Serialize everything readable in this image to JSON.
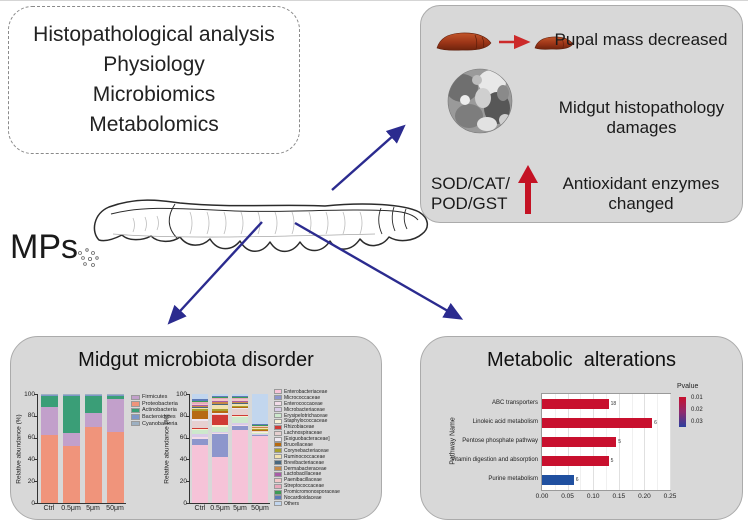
{
  "methods_box": {
    "lines": [
      "Histopathological analysis",
      "Physiology",
      "Microbiomics",
      "Metabolomics"
    ]
  },
  "mps_label": "MPs",
  "phenotype_box": {
    "pupal_text": "Pupal mass decreased",
    "histo_text": "Midgut histopathology\ndamages",
    "enzymes_label": "SOD/CAT/\nPOD/GST",
    "enzymes_text": "Antioxidant enzymes\nchanged"
  },
  "microbiota_box": {
    "title": "Midgut microbiota disorder"
  },
  "metabolic_box": {
    "title": "Metabolic  alterations"
  },
  "colors": {
    "arrow_navy": "#2b2b8f",
    "arrow_red": "#cc2a2a",
    "enzyme_arrow_red": "#c41224",
    "box_gray": "#d8d8d8",
    "bar_red": "#c8102e",
    "bar_blue": "#2050a0"
  },
  "chart_data": [
    {
      "id": "phylum",
      "type": "bar",
      "stacked": true,
      "ylabel": "Relative abundance (%)",
      "ylim": [
        0,
        100
      ],
      "yticks": [
        0,
        20,
        40,
        60,
        80,
        100
      ],
      "categories": [
        "Ctrl",
        "0.5μm",
        "5μm",
        "50μm"
      ],
      "legend_position": "right",
      "stack_order": [
        1,
        0,
        2,
        3,
        4
      ],
      "series": [
        {
          "name": "Firmicutes",
          "color": "#c2a0cb",
          "values": [
            26,
            12,
            13,
            30
          ]
        },
        {
          "name": "Proteobacteria",
          "color": "#f0947b",
          "values": [
            62,
            52,
            70,
            65
          ]
        },
        {
          "name": "Actinobacteria",
          "color": "#3a9e77",
          "values": [
            10,
            35,
            15,
            4
          ]
        },
        {
          "name": "Bacteroidetes",
          "color": "#7e97c8",
          "values": [
            1,
            0.5,
            1,
            0.5
          ]
        },
        {
          "name": "Cyanobacteria",
          "color": "#9db0c2",
          "values": [
            1,
            0.5,
            1,
            0.5
          ]
        }
      ]
    },
    {
      "id": "family",
      "type": "bar",
      "stacked": true,
      "ylabel": "Relative abundance (%)",
      "ylim": [
        0,
        100
      ],
      "yticks": [
        0,
        20,
        40,
        60,
        80,
        100
      ],
      "categories": [
        "Ctrl",
        "0.5μm",
        "5μm",
        "50μm"
      ],
      "legend_position": "right",
      "series": [
        {
          "name": "Enterobacteriaceae",
          "color": "#f6c3d8",
          "values": [
            53,
            42,
            67,
            62
          ]
        },
        {
          "name": "Micrococcaceae",
          "color": "#8d96cc",
          "values": [
            6,
            21,
            4,
            0.5
          ]
        },
        {
          "name": "Enterococcaceae",
          "color": "#f2dce8",
          "values": [
            2,
            1,
            1,
            0.5
          ]
        },
        {
          "name": "Microbacteriaceae",
          "color": "#d9cbe8",
          "values": [
            2,
            1,
            1,
            0.5
          ]
        },
        {
          "name": "Erysipelotrichaceae",
          "color": "#cde8cc",
          "values": [
            4,
            5,
            6,
            1.5
          ]
        },
        {
          "name": "Staphylococcaceae",
          "color": "#f8f1d4",
          "values": [
            1,
            2,
            1,
            0.5
          ]
        },
        {
          "name": "Rhizobiaceae",
          "color": "#d03a34",
          "values": [
            0.5,
            9,
            0.5,
            0.3
          ]
        },
        {
          "name": "Lachnospiraceae",
          "color": "#e6d0d0",
          "values": [
            7,
            1,
            6,
            0.7
          ]
        },
        {
          "name": "[Exiguobacteraceae]",
          "color": "#eee8f0",
          "values": [
            1.5,
            0.5,
            0.5,
            0.3
          ]
        },
        {
          "name": "Brucellaceae",
          "color": "#b66a10",
          "values": [
            7,
            1.5,
            1,
            0.2
          ]
        },
        {
          "name": "Corynebacteriaceae",
          "color": "#a8a02e",
          "values": [
            2,
            2,
            1,
            0.5
          ]
        },
        {
          "name": "Ruminococcaceae",
          "color": "#f2e2b0",
          "values": [
            1,
            4,
            2,
            1.5
          ]
        },
        {
          "name": "Brevibacteriaceae",
          "color": "#49687f",
          "values": [
            1,
            1,
            1,
            0.5
          ]
        },
        {
          "name": "Dermabacteraceae",
          "color": "#c78947",
          "values": [
            1,
            2,
            1,
            0.5
          ]
        },
        {
          "name": "Lactobacillaceae",
          "color": "#a85da8",
          "values": [
            1,
            1,
            1,
            0.5
          ]
        },
        {
          "name": "Paenibacillaceae",
          "color": "#f2c7c7",
          "values": [
            1,
            1,
            1,
            0.5
          ]
        },
        {
          "name": "Streptococcaceae",
          "color": "#e8a8ba",
          "values": [
            2,
            1,
            1,
            0.5
          ]
        },
        {
          "name": "Promicromonosporaceae",
          "color": "#3d9a55",
          "values": [
            1,
            1,
            1,
            0.5
          ]
        },
        {
          "name": "Nocardioidaceae",
          "color": "#5c7ab8",
          "values": [
            1,
            1,
            1,
            0.5
          ]
        },
        {
          "name": "Others",
          "color": "#c2d6ee",
          "values": [
            5,
            2,
            2,
            27.5
          ]
        }
      ]
    },
    {
      "id": "pathways",
      "type": "bar_h",
      "ylabel": "Pathway Name",
      "categories": [
        "ABC transporters",
        "Linoleic acid metabolism",
        "Pentose phosphate pathway",
        "Vitamin digestion and absorption",
        "Purine metabolism"
      ],
      "values": [
        0.13,
        0.215,
        0.145,
        0.13,
        0.062
      ],
      "counts": [
        "18",
        "6",
        "5",
        "5",
        "6"
      ],
      "bar_colors": [
        "#c8102e",
        "#c8102e",
        "#c8102e",
        "#c8102e",
        "#2050a0"
      ],
      "xlim": [
        0,
        0.25
      ],
      "xticks": [
        "0.00",
        "0.05",
        "0.10",
        "0.15",
        "0.20",
        "0.25"
      ],
      "grid": true,
      "legend": {
        "title": "Pvalue",
        "ticks": [
          "0.01",
          "0.02",
          "0.03"
        ]
      }
    }
  ]
}
